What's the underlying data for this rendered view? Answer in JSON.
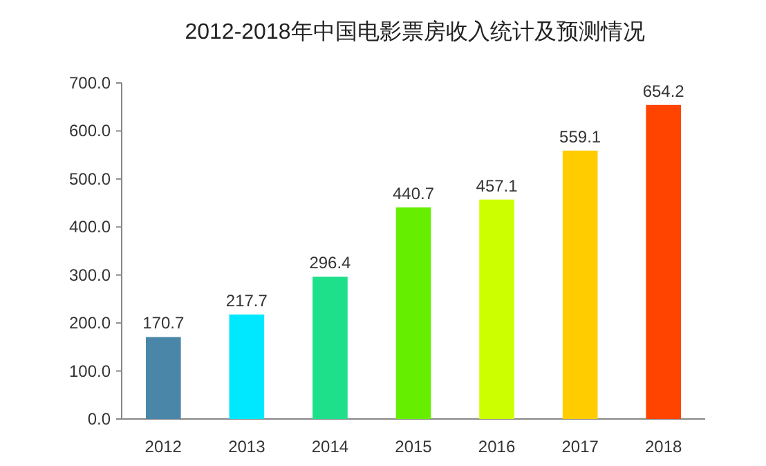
{
  "chart_data": {
    "type": "bar",
    "title": "2012-2018年中国电影票房收入统计及预测情况",
    "categories": [
      "2012",
      "2013",
      "2014",
      "2015",
      "2016",
      "2017",
      "2018"
    ],
    "values": [
      170.7,
      217.7,
      296.4,
      440.7,
      457.1,
      559.1,
      654.2
    ],
    "colors": [
      "#4a86a8",
      "#00e8ff",
      "#1ee08a",
      "#66ee00",
      "#ccff00",
      "#ffcc00",
      "#ff4400"
    ],
    "ylim": [
      0,
      700
    ],
    "yticks": [
      {
        "value": 0,
        "label": "0.0"
      },
      {
        "value": 100,
        "label": "100.0"
      },
      {
        "value": 200,
        "label": "200.0"
      },
      {
        "value": 300,
        "label": "300.0"
      },
      {
        "value": 400,
        "label": "400.0"
      },
      {
        "value": 500,
        "label": "500.0"
      },
      {
        "value": 600,
        "label": "600.0"
      },
      {
        "value": 700,
        "label": "700.0"
      }
    ],
    "data_labels": true
  }
}
